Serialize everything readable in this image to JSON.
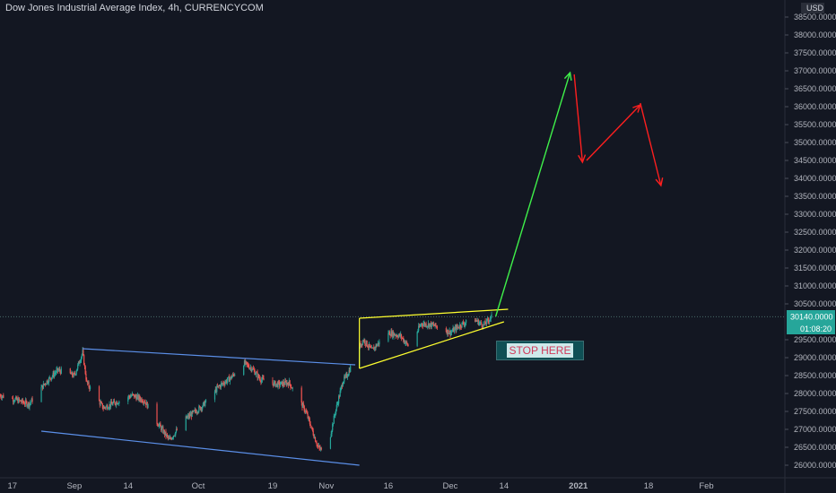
{
  "header": {
    "title": "Dow Jones Industrial Average Index, 4h, CURRENCYCOM"
  },
  "annotation": {
    "stop_label": "STOP HERE"
  },
  "price_axis": {
    "currency": "USD",
    "price_label": "30140.0000",
    "countdown": "01:08:20"
  },
  "colors": {
    "background": "#131722",
    "up": "#26a69a",
    "down": "#ef5350",
    "channel": "#5b8fe8",
    "triangle": "#ffff2e",
    "projection_up": "#3ff04a",
    "projection_down": "#ff1f1f",
    "price_tag": "#26a69a"
  },
  "chart_data": {
    "type": "candlestick",
    "y_axis": {
      "min": 25850,
      "max": 38800,
      "ticks": [
        26000,
        26500,
        27000,
        27500,
        28000,
        28500,
        29000,
        29500,
        30000,
        30500,
        31000,
        31500,
        32000,
        32500,
        33000,
        33500,
        34000,
        34500,
        35000,
        35500,
        36000,
        36500,
        37000,
        37500,
        38000,
        38500
      ],
      "tick_labels": [
        "26000.0000",
        "26500.0000",
        "27000.0000",
        "27500.0000",
        "28000.0000",
        "28500.0000",
        "29000.0000",
        "29500.0000",
        "30000.0000",
        "30500.0000",
        "31000.0000",
        "31500.0000",
        "32000.0000",
        "32500.0000",
        "33000.0000",
        "33500.0000",
        "34000.0000",
        "34500.0000",
        "35000.0000",
        "35500.0000",
        "36000.0000",
        "36500.0000",
        "37000.0000",
        "37500.0000",
        "38000.0000",
        "38500.0000"
      ]
    },
    "x_axis": {
      "start": "2020-08-14",
      "end": "2021-02-20",
      "ticks": [
        {
          "date": "2020-08-17",
          "label": "17"
        },
        {
          "date": "2020-09-01",
          "label": "Sep"
        },
        {
          "date": "2020-09-14",
          "label": "14"
        },
        {
          "date": "2020-10-01",
          "label": "Oct"
        },
        {
          "date": "2020-10-19",
          "label": "19"
        },
        {
          "date": "2020-11-01",
          "label": "Nov"
        },
        {
          "date": "2020-11-16",
          "label": "16"
        },
        {
          "date": "2020-12-01",
          "label": "Dec"
        },
        {
          "date": "2020-12-14",
          "label": "14"
        },
        {
          "date": "2021-01-01",
          "label": "2021"
        },
        {
          "date": "2021-01-18",
          "label": "18"
        },
        {
          "date": "2021-02-01",
          "label": "Feb"
        }
      ]
    },
    "close_path": [
      [
        "2020-08-14",
        27950
      ],
      [
        "2020-08-18",
        27820
      ],
      [
        "2020-08-21",
        27700
      ],
      [
        "2020-08-25",
        28300
      ],
      [
        "2020-08-28",
        28650
      ],
      [
        "2020-09-01",
        28500
      ],
      [
        "2020-09-03",
        29150
      ],
      [
        "2020-09-04",
        28300
      ],
      [
        "2020-09-08",
        27600
      ],
      [
        "2020-09-11",
        27750
      ],
      [
        "2020-09-15",
        27950
      ],
      [
        "2020-09-18",
        27800
      ],
      [
        "2020-09-21",
        27200
      ],
      [
        "2020-09-24",
        26700
      ],
      [
        "2020-09-28",
        27300
      ],
      [
        "2020-10-02",
        27650
      ],
      [
        "2020-10-06",
        28200
      ],
      [
        "2020-10-09",
        28450
      ],
      [
        "2020-10-12",
        28850
      ],
      [
        "2020-10-14",
        28700
      ],
      [
        "2020-10-16",
        28400
      ],
      [
        "2020-10-20",
        28250
      ],
      [
        "2020-10-23",
        28300
      ],
      [
        "2020-10-27",
        27500
      ],
      [
        "2020-10-30",
        26500
      ],
      [
        "2020-11-01",
        26300
      ],
      [
        "2020-11-03",
        27400
      ],
      [
        "2020-11-05",
        28350
      ],
      [
        "2020-11-06",
        28500
      ],
      [
        "2020-11-09",
        29300
      ],
      [
        "2020-11-10",
        29500
      ],
      [
        "2020-11-12",
        29200
      ],
      [
        "2020-11-16",
        29700
      ],
      [
        "2020-11-19",
        29600
      ],
      [
        "2020-11-21",
        29300
      ],
      [
        "2020-11-24",
        29950
      ],
      [
        "2020-11-27",
        29900
      ],
      [
        "2020-12-01",
        29700
      ],
      [
        "2020-12-04",
        29950
      ],
      [
        "2020-12-07",
        30050
      ],
      [
        "2020-12-09",
        29900
      ],
      [
        "2020-12-11",
        30140
      ]
    ],
    "trend_lines": [
      {
        "name": "channel-top",
        "color": "#5b8fe8",
        "from": [
          "2020-09-03",
          29250
        ],
        "to": [
          "2020-11-08",
          28800
        ]
      },
      {
        "name": "channel-bottom",
        "color": "#5b8fe8",
        "from": [
          "2020-08-24",
          26950
        ],
        "to": [
          "2020-11-09",
          26000
        ]
      },
      {
        "name": "triangle-top",
        "color": "#ffff2e",
        "from": [
          "2020-11-09",
          30100
        ],
        "to": [
          "2020-12-15",
          30350
        ]
      },
      {
        "name": "triangle-bottom",
        "color": "#ffff2e",
        "from": [
          "2020-11-09",
          28700
        ],
        "to": [
          "2020-12-14",
          30000
        ]
      },
      {
        "name": "triangle-left",
        "color": "#ffff2e",
        "from": [
          "2020-11-09",
          28700
        ],
        "to": [
          "2020-11-09",
          30100
        ]
      }
    ],
    "projection": [
      {
        "name": "rally",
        "color": "#3ff04a",
        "from": [
          "2020-12-12",
          30150
        ],
        "to": [
          "2020-12-30",
          36950
        ]
      },
      {
        "name": "drop-1",
        "color": "#ff1f1f",
        "from": [
          "2020-12-31",
          36900
        ],
        "to": [
          "2021-01-02",
          34450
        ]
      },
      {
        "name": "bounce",
        "color": "#ff1f1f",
        "from": [
          "2021-01-03",
          34500
        ],
        "to": [
          "2021-01-16",
          36050
        ]
      },
      {
        "name": "drop-2",
        "color": "#ff1f1f",
        "from": [
          "2021-01-16",
          36100
        ],
        "to": [
          "2021-01-21",
          33800
        ]
      }
    ],
    "last_price": 30140
  }
}
